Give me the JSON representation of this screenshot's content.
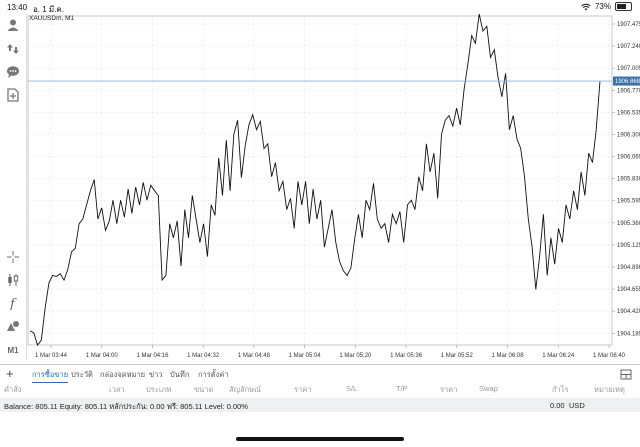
{
  "status": {
    "time": "13:40",
    "date": "อ. 1 มี.ค.",
    "battery": "73%",
    "battery_level": 0.73
  },
  "toolbar": {
    "tools": [
      "account-icon",
      "trade-arrows-icon",
      "chat-icon",
      "add-document-icon",
      "crosshair-icon",
      "candlestick-icon",
      "function-icon",
      "objects-icon",
      "timeframe-label"
    ],
    "timeframe": "M1"
  },
  "chart": {
    "symbol": "XAUUSDm, M1",
    "bid_price": "1906.868",
    "price_labels": [
      "1907.475",
      "1907.240",
      "1907.005",
      "1906.770",
      "1906.535",
      "1906.300",
      "1906.065",
      "1905.830",
      "1905.595",
      "1905.360",
      "1905.125",
      "1904.890",
      "1904.655",
      "1904.420",
      "1904.185"
    ],
    "time_labels": [
      "1 Mar 03:44",
      "1 Mar 04:00",
      "1 Mar 04:16",
      "1 Mar 04:32",
      "1 Mar 04:48",
      "1 Mar 05:04",
      "1 Mar 05:20",
      "1 Mar 05:36",
      "1 Mar 05:52",
      "1 Mar 06:08",
      "1 Mar 06:24",
      "1 Mar 06:40"
    ]
  },
  "chart_data": {
    "type": "line",
    "title": "XAUUSDm, M1",
    "xlabel": "",
    "ylabel": "",
    "ylim": [
      4.06,
      7.56
    ],
    "y_offset_note": "",
    "series": [
      {
        "values": [
          4.21,
          4.19,
          4.06,
          4.11,
          4.45,
          4.72,
          4.8,
          4.79,
          4.82,
          4.75,
          4.86,
          5.05,
          5.09,
          5.35,
          5.4,
          5.55,
          5.7,
          5.82,
          5.4,
          5.52,
          5.28,
          5.38,
          5.6,
          5.35,
          5.6,
          5.42,
          5.72,
          5.46,
          5.74,
          5.55,
          5.79,
          5.6,
          5.76,
          5.7,
          5.65,
          4.75,
          4.8,
          5.35,
          5.2,
          5.38,
          4.9,
          5.5,
          5.2,
          5.65,
          5.4,
          5.15,
          5.35,
          5.0,
          5.55,
          5.44,
          6.05,
          5.65,
          6.24,
          5.7,
          6.3,
          6.45,
          5.84,
          6.18,
          6.4,
          6.51,
          6.35,
          6.44,
          6.15,
          6.2,
          5.85,
          6.0,
          5.7,
          5.8,
          5.5,
          5.62,
          5.3,
          5.8,
          5.55,
          5.8,
          5.35,
          5.72,
          5.4,
          5.6,
          5.1,
          5.3,
          5.5,
          5.15,
          4.95,
          4.85,
          4.8,
          4.88,
          5.18,
          5.45,
          5.2,
          5.6,
          5.5,
          5.78,
          5.4,
          5.3,
          5.35,
          5.15,
          5.45,
          5.35,
          5.48,
          5.15,
          5.55,
          5.6,
          5.5,
          5.85,
          5.7,
          6.2,
          5.9,
          6.1,
          5.62,
          6.3,
          6.45,
          6.5,
          6.39,
          6.58,
          6.4,
          6.78,
          7.05,
          7.35,
          7.27,
          7.58,
          7.4,
          7.45,
          7.12,
          7.2,
          6.9,
          6.7,
          6.95,
          6.35,
          6.5,
          6.25,
          6.15,
          5.85,
          5.4,
          5.1,
          4.65,
          5.0,
          5.45,
          4.8,
          5.2,
          4.92,
          5.3,
          5.15,
          5.55,
          5.4,
          5.7,
          5.5,
          5.9,
          5.65,
          6.1,
          6.0,
          6.35,
          6.87
        ]
      }
    ]
  },
  "tabs": [
    {
      "label": "การซื้อขาย",
      "active": true
    },
    {
      "label": "ประวัติ",
      "active": false
    },
    {
      "label": "กล่องจดหมาย",
      "active": false
    },
    {
      "label": "ข่าว",
      "active": false
    },
    {
      "label": "บันทึก",
      "active": false
    },
    {
      "label": "การตั้งค่า",
      "active": false
    }
  ],
  "columns": [
    "คำสั่ง",
    "เวลา",
    "ประเภท",
    "ขนาด",
    "สัญลักษณ์",
    "ราคา",
    "S/L",
    "T/P",
    "ราคา",
    "Swap",
    "กำไร",
    "หมายเหตุ"
  ],
  "account": {
    "summary": "Balance: 805.11 Equity: 805.11 หลักประกัน: 0.00 ฟรี: 805.11 Level: 0.00%",
    "profit": "0.00",
    "currency": "USD"
  }
}
